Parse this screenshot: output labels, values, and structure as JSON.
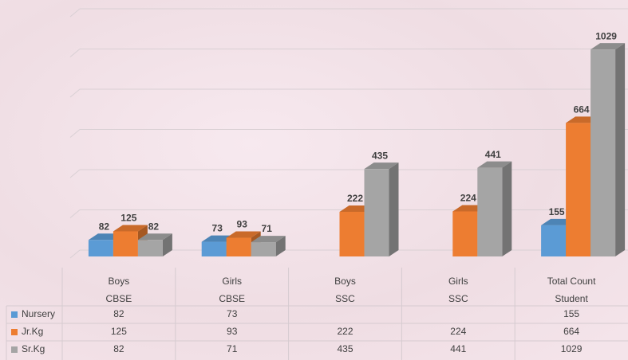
{
  "chart_data": {
    "type": "bar3d",
    "categories": [
      [
        "Boys",
        "CBSE"
      ],
      [
        "Girls",
        "CBSE"
      ],
      [
        "Boys",
        "SSC"
      ],
      [
        "Girls",
        "SSC"
      ],
      [
        "Total Count",
        "Student"
      ]
    ],
    "series": [
      {
        "name": "Nursery",
        "color": "#5b9bd5",
        "values": [
          82,
          73,
          null,
          null,
          155
        ]
      },
      {
        "name": "Jr.Kg",
        "color": "#ed7d31",
        "values": [
          125,
          93,
          222,
          224,
          664
        ]
      },
      {
        "name": "Sr.Kg",
        "color": "#a5a5a5",
        "values": [
          82,
          71,
          435,
          441,
          1029
        ]
      }
    ],
    "ylim": [
      0,
      1200
    ],
    "yticks": [
      0,
      200,
      400,
      600,
      800,
      1000,
      1200
    ],
    "grid": true,
    "data_table": true
  }
}
